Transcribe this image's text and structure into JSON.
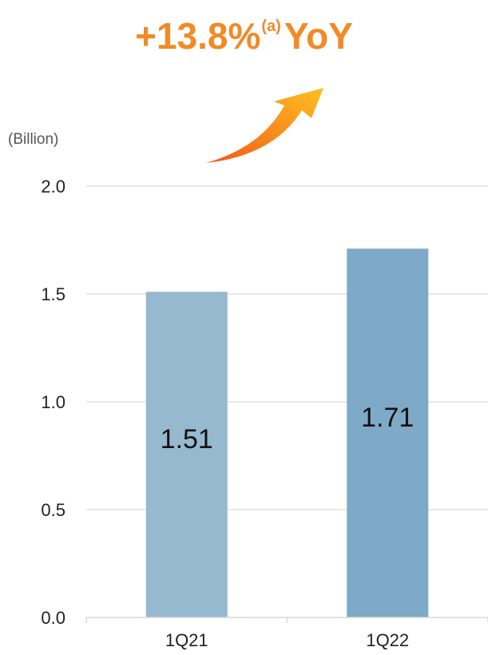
{
  "headline": {
    "growth": "+13.8%",
    "footnote": "(a)",
    "suffix": "YoY"
  },
  "colors": {
    "headline": "#f28a26",
    "arrow_start": "#f25a1a",
    "arrow_end": "#ffc020",
    "bar_1": "#96b9cf",
    "bar_2": "#7eaac7",
    "gridline": "#d9d9d9",
    "text": "#222222"
  },
  "chart_data": {
    "type": "bar",
    "unit_label": "(Billion)",
    "categories": [
      "1Q21",
      "1Q22"
    ],
    "values": [
      1.51,
      1.71
    ],
    "data_labels": [
      "1.51",
      "1.71"
    ],
    "ylim": [
      0,
      2.0
    ],
    "yticks": [
      0.0,
      0.5,
      1.0,
      1.5,
      2.0
    ],
    "ytick_labels": [
      "0.0",
      "0.5",
      "1.0",
      "1.5",
      "2.0"
    ],
    "grid": true,
    "legend": "none"
  }
}
